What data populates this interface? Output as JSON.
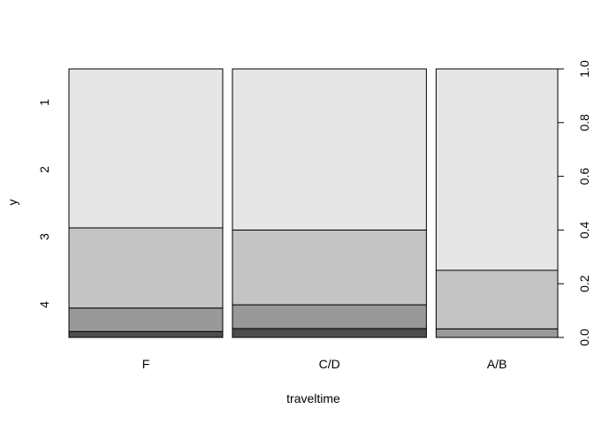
{
  "chart_data": {
    "type": "spineplot",
    "xlabel": "traveltime",
    "ylabel": "y",
    "categories": [
      "F",
      "C/D",
      "A/B"
    ],
    "category_widths": [
      0.3697,
      0.4663,
      0.2925
    ],
    "series_labels": [
      "4",
      "3",
      "2",
      "1"
    ],
    "series_colors": [
      "#4d4d4d",
      "#999999",
      "#c4c4c4",
      "#e6e6e6"
    ],
    "segments": [
      [
        0.022,
        0.0875,
        0.2985,
        0.592
      ],
      [
        0.033,
        0.0885,
        0.2785,
        0.6
      ],
      [
        0.0,
        0.032,
        0.218,
        0.75
      ]
    ],
    "right_axis": {
      "ticks": [
        "0.0",
        "0.2",
        "0.4",
        "0.6",
        "0.8",
        "1.0"
      ],
      "tick_values": [
        0.0,
        0.2,
        0.4,
        0.6,
        0.8,
        1.0
      ],
      "ylim": [
        0,
        1
      ]
    },
    "left_axis_labels": [
      "4",
      "3",
      "2",
      "1"
    ],
    "left_axis_positions": [
      0.122,
      0.375,
      0.625,
      0.875
    ]
  }
}
